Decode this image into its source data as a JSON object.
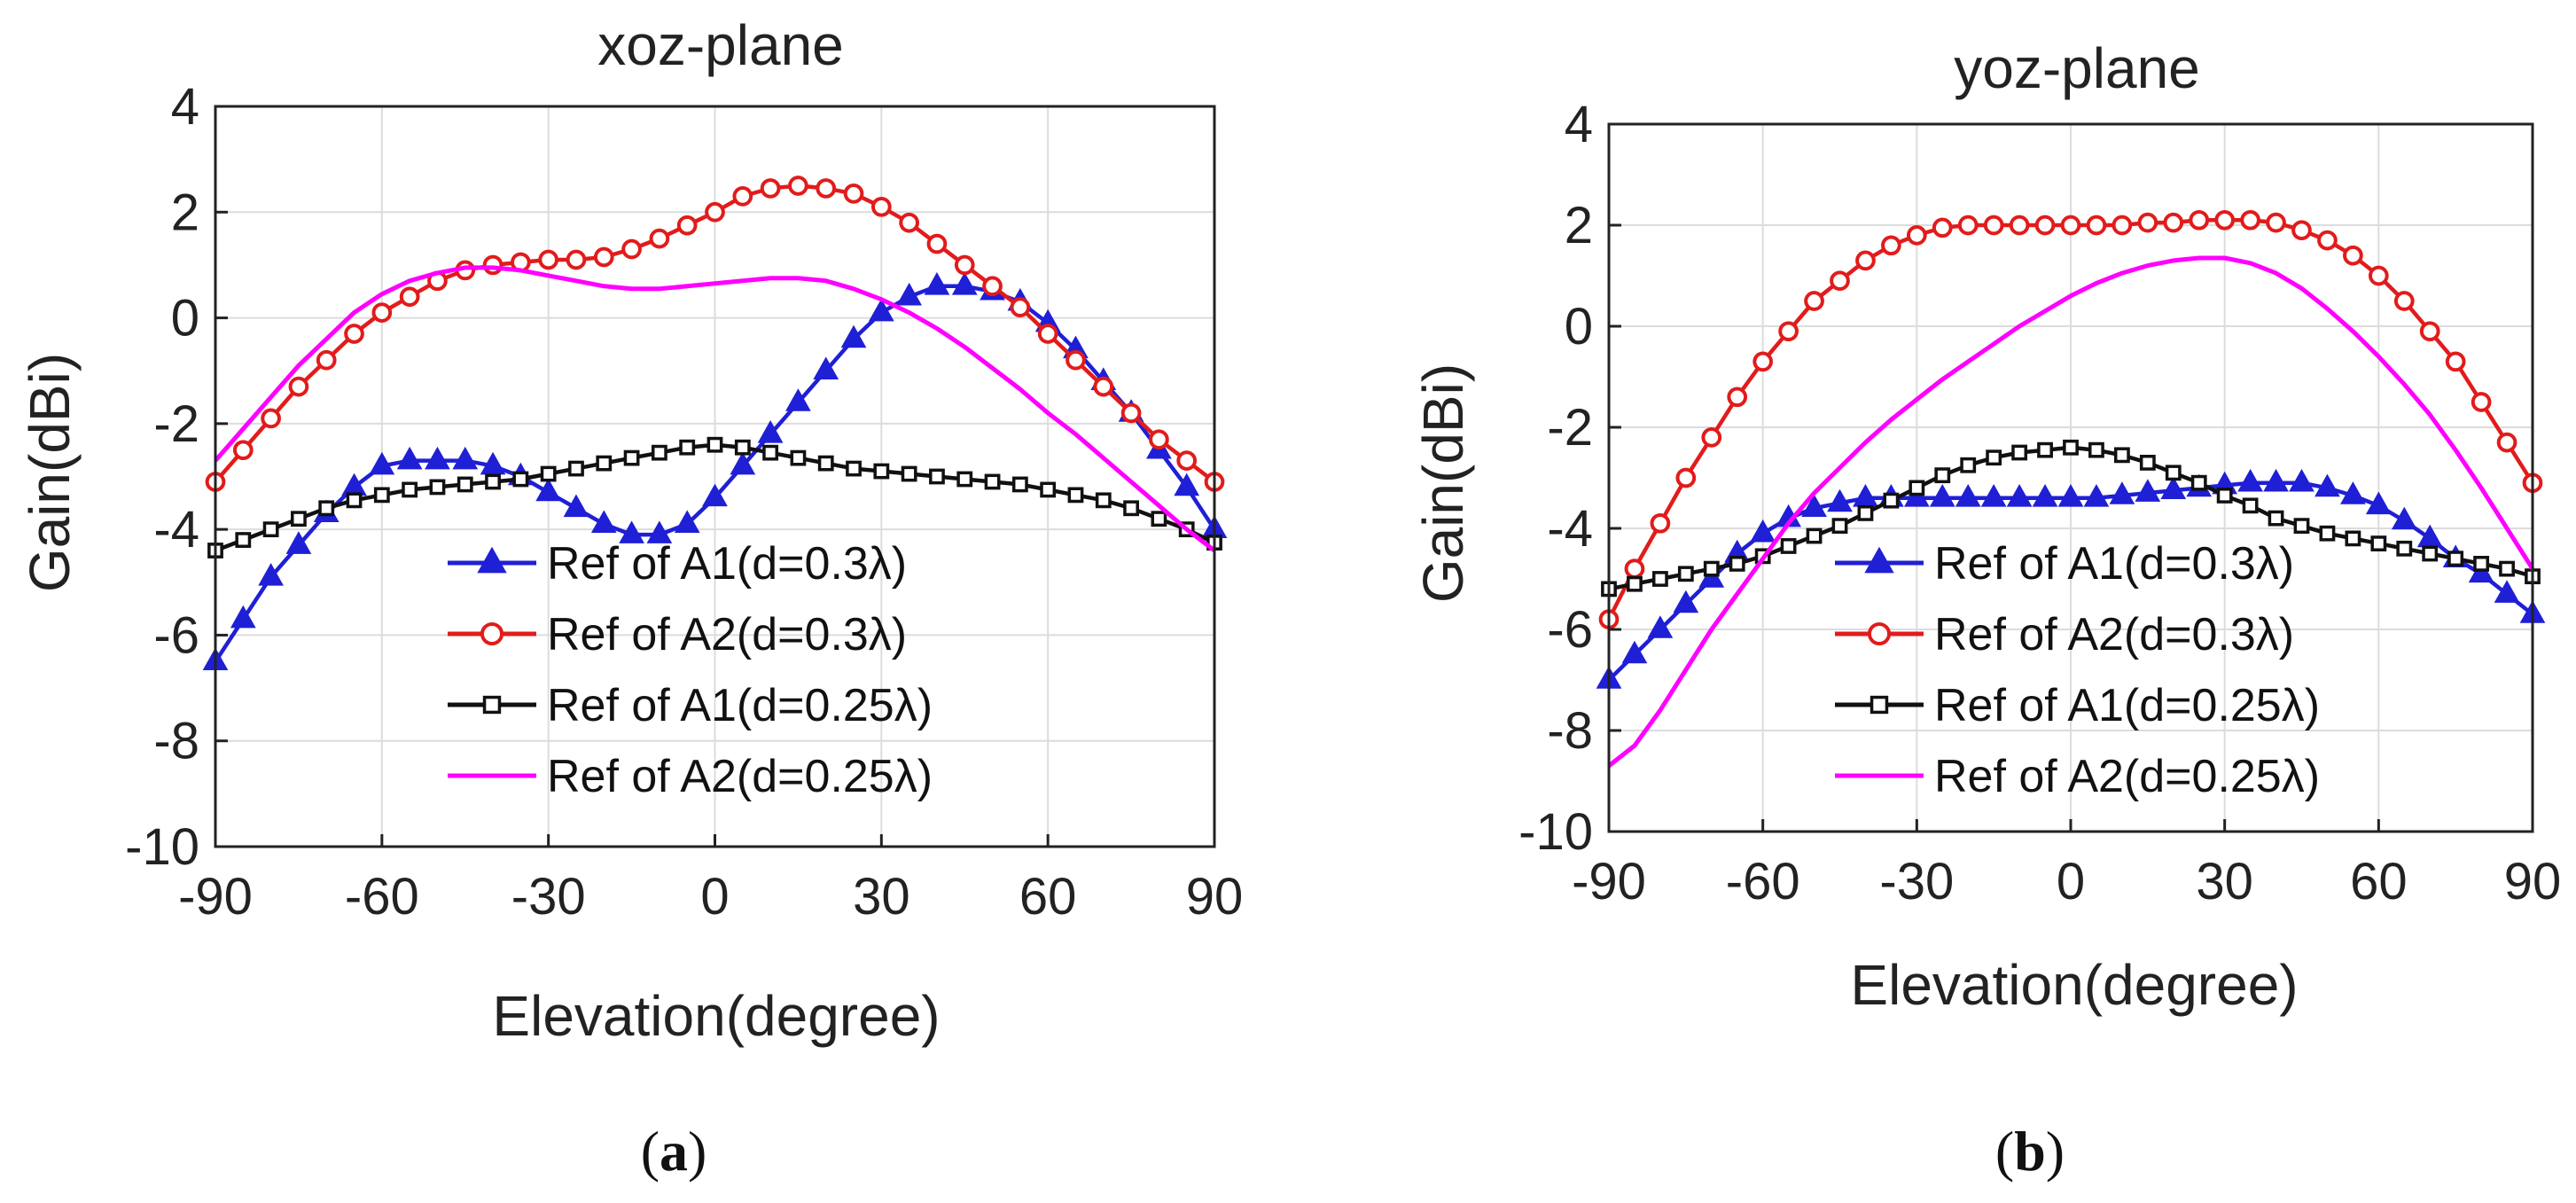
{
  "chart_data": [
    {
      "type": "line",
      "panel_label": "(a)",
      "panel_letter": "a",
      "title": "xoz-plane",
      "xlabel": "Elevation(degree)",
      "ylabel": "Gain(dBi)",
      "xlim": [
        -90,
        90
      ],
      "ylim": [
        -10,
        4
      ],
      "xticks": [
        -90,
        -60,
        -30,
        0,
        30,
        60,
        90
      ],
      "yticks": [
        -10,
        -8,
        -6,
        -4,
        -2,
        0,
        2,
        4
      ],
      "grid": true,
      "legend_position": "bottom-center",
      "x": [
        -90,
        -85,
        -80,
        -75,
        -70,
        -65,
        -60,
        -55,
        -50,
        -45,
        -40,
        -35,
        -30,
        -25,
        -20,
        -15,
        -10,
        -5,
        0,
        5,
        10,
        15,
        20,
        25,
        30,
        35,
        40,
        45,
        50,
        55,
        60,
        65,
        70,
        75,
        80,
        85,
        90
      ],
      "series": [
        {
          "name": "Ref of A1(d=0.3λ)",
          "color": "#1f1fd6",
          "marker": "triangle",
          "values": [
            -6.5,
            -5.7,
            -4.9,
            -4.3,
            -3.7,
            -3.2,
            -2.8,
            -2.7,
            -2.7,
            -2.7,
            -2.8,
            -3.0,
            -3.3,
            -3.6,
            -3.9,
            -4.1,
            -4.1,
            -3.9,
            -3.4,
            -2.8,
            -2.2,
            -1.6,
            -1.0,
            -0.4,
            0.1,
            0.4,
            0.6,
            0.6,
            0.5,
            0.3,
            -0.1,
            -0.6,
            -1.2,
            -1.8,
            -2.5,
            -3.2,
            -4.0
          ]
        },
        {
          "name": "Ref of A2(d=0.3λ)",
          "color": "#e21b1b",
          "marker": "circle",
          "values": [
            -3.1,
            -2.5,
            -1.9,
            -1.3,
            -0.8,
            -0.3,
            0.1,
            0.4,
            0.7,
            0.9,
            1.0,
            1.05,
            1.1,
            1.1,
            1.15,
            1.3,
            1.5,
            1.75,
            2.0,
            2.3,
            2.45,
            2.5,
            2.45,
            2.35,
            2.1,
            1.8,
            1.4,
            1.0,
            0.6,
            0.2,
            -0.3,
            -0.8,
            -1.3,
            -1.8,
            -2.3,
            -2.7,
            -3.1
          ]
        },
        {
          "name": "Ref of A1(d=0.25λ)",
          "color": "#111111",
          "marker": "square",
          "values": [
            -4.4,
            -4.2,
            -4.0,
            -3.8,
            -3.6,
            -3.45,
            -3.35,
            -3.25,
            -3.2,
            -3.15,
            -3.1,
            -3.05,
            -2.95,
            -2.85,
            -2.75,
            -2.65,
            -2.55,
            -2.45,
            -2.4,
            -2.45,
            -2.55,
            -2.65,
            -2.75,
            -2.85,
            -2.9,
            -2.95,
            -3.0,
            -3.05,
            -3.1,
            -3.15,
            -3.25,
            -3.35,
            -3.45,
            -3.6,
            -3.8,
            -4.0,
            -4.25
          ]
        },
        {
          "name": "Ref of A2(d=0.25λ)",
          "color": "#ff00ff",
          "marker": "none",
          "values": [
            -2.7,
            -2.1,
            -1.5,
            -0.9,
            -0.4,
            0.1,
            0.45,
            0.7,
            0.85,
            0.95,
            0.95,
            0.9,
            0.8,
            0.7,
            0.6,
            0.55,
            0.55,
            0.6,
            0.65,
            0.7,
            0.75,
            0.75,
            0.7,
            0.55,
            0.35,
            0.1,
            -0.2,
            -0.55,
            -0.95,
            -1.35,
            -1.8,
            -2.2,
            -2.65,
            -3.1,
            -3.55,
            -4.0,
            -4.4
          ]
        }
      ]
    },
    {
      "type": "line",
      "panel_label": "(b)",
      "panel_letter": "b",
      "title": "yoz-plane",
      "xlabel": "Elevation(degree)",
      "ylabel": "Gain(dBi)",
      "xlim": [
        -90,
        90
      ],
      "ylim": [
        -10,
        4
      ],
      "xticks": [
        -90,
        -60,
        -30,
        0,
        30,
        60,
        90
      ],
      "yticks": [
        -10,
        -8,
        -6,
        -4,
        -2,
        0,
        2,
        4
      ],
      "grid": true,
      "legend_position": "bottom-center",
      "x": [
        -90,
        -85,
        -80,
        -75,
        -70,
        -65,
        -60,
        -55,
        -50,
        -45,
        -40,
        -35,
        -30,
        -25,
        -20,
        -15,
        -10,
        -5,
        0,
        5,
        10,
        15,
        20,
        25,
        30,
        35,
        40,
        45,
        50,
        55,
        60,
        65,
        70,
        75,
        80,
        85,
        90
      ],
      "series": [
        {
          "name": "Ref of A1(d=0.3λ)",
          "color": "#1f1fd6",
          "marker": "triangle",
          "values": [
            -7.0,
            -6.5,
            -6.0,
            -5.5,
            -5.0,
            -4.5,
            -4.1,
            -3.8,
            -3.6,
            -3.5,
            -3.4,
            -3.4,
            -3.4,
            -3.4,
            -3.4,
            -3.4,
            -3.4,
            -3.4,
            -3.4,
            -3.4,
            -3.35,
            -3.3,
            -3.25,
            -3.2,
            -3.15,
            -3.1,
            -3.1,
            -3.1,
            -3.2,
            -3.35,
            -3.55,
            -3.85,
            -4.2,
            -4.6,
            -4.9,
            -5.3,
            -5.7
          ]
        },
        {
          "name": "Ref of A2(d=0.3λ)",
          "color": "#e21b1b",
          "marker": "circle",
          "values": [
            -5.8,
            -4.8,
            -3.9,
            -3.0,
            -2.2,
            -1.4,
            -0.7,
            -0.1,
            0.5,
            0.9,
            1.3,
            1.6,
            1.8,
            1.95,
            2.0,
            2.0,
            2.0,
            2.0,
            2.0,
            2.0,
            2.0,
            2.05,
            2.05,
            2.1,
            2.1,
            2.1,
            2.05,
            1.9,
            1.7,
            1.4,
            1.0,
            0.5,
            -0.1,
            -0.7,
            -1.5,
            -2.3,
            -3.1
          ]
        },
        {
          "name": "Ref of A1(d=0.25λ)",
          "color": "#111111",
          "marker": "square",
          "values": [
            -5.2,
            -5.1,
            -5.0,
            -4.9,
            -4.8,
            -4.7,
            -4.55,
            -4.35,
            -4.15,
            -3.95,
            -3.7,
            -3.45,
            -3.2,
            -2.95,
            -2.75,
            -2.6,
            -2.5,
            -2.45,
            -2.4,
            -2.45,
            -2.55,
            -2.7,
            -2.9,
            -3.1,
            -3.35,
            -3.55,
            -3.8,
            -3.95,
            -4.1,
            -4.2,
            -4.3,
            -4.4,
            -4.5,
            -4.6,
            -4.7,
            -4.8,
            -4.95
          ]
        },
        {
          "name": "Ref of A2(d=0.25λ)",
          "color": "#ff00ff",
          "marker": "none",
          "values": [
            -8.7,
            -8.3,
            -7.6,
            -6.8,
            -6.0,
            -5.3,
            -4.6,
            -3.9,
            -3.3,
            -2.8,
            -2.3,
            -1.85,
            -1.45,
            -1.05,
            -0.7,
            -0.35,
            0.0,
            0.3,
            0.6,
            0.85,
            1.05,
            1.2,
            1.3,
            1.35,
            1.35,
            1.25,
            1.05,
            0.75,
            0.35,
            -0.1,
            -0.6,
            -1.15,
            -1.75,
            -2.45,
            -3.2,
            -4.0,
            -4.8
          ]
        }
      ]
    }
  ]
}
